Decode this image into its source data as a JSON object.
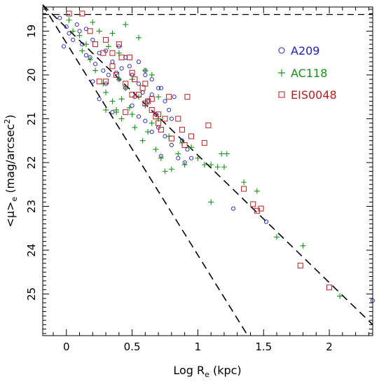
{
  "chart_data": {
    "type": "scatter",
    "xlabel": "Log R",
    "xlabel_sub": "e",
    "xlabel_unit": " (kpc)",
    "ylabel": "<μ>",
    "ylabel_sub": "e",
    "ylabel_unit": " (mag/arcsec",
    "ylabel_sup": "2",
    "ylabel_close": ")",
    "xlim": [
      -0.18,
      2.33
    ],
    "ylim": [
      25.95,
      18.45
    ],
    "y_inverted": true,
    "x_ticks": [
      "0",
      "0.5",
      "1",
      "1.5",
      "2"
    ],
    "x_tick_values": [
      0,
      0.5,
      1,
      1.5,
      2
    ],
    "y_ticks": [
      "19",
      "20",
      "21",
      "22",
      "23",
      "24",
      "25"
    ],
    "y_tick_values": [
      19,
      20,
      21,
      22,
      23,
      24,
      25
    ],
    "legend_placement": "top-right",
    "lines": [
      {
        "style": "dashed",
        "kind": "horizontal",
        "y": 18.62
      },
      {
        "style": "dashed",
        "points": [
          [
            -0.18,
            18.4
          ],
          [
            2.33,
            25.7
          ]
        ]
      },
      {
        "style": "dashed",
        "points": [
          [
            -0.18,
            18.4
          ],
          [
            1.38,
            25.95
          ]
        ]
      }
    ],
    "series": [
      {
        "name": "A209",
        "marker": "circle",
        "color": "#1f1fb4",
        "points": [
          [
            -0.05,
            18.7
          ],
          [
            0.0,
            18.9
          ],
          [
            0.02,
            19.05
          ],
          [
            0.05,
            19.2
          ],
          [
            -0.02,
            19.35
          ],
          [
            0.1,
            19.0
          ],
          [
            0.12,
            19.3
          ],
          [
            0.15,
            19.55
          ],
          [
            0.18,
            19.6
          ],
          [
            0.2,
            19.2
          ],
          [
            0.22,
            19.75
          ],
          [
            0.25,
            19.5
          ],
          [
            0.28,
            19.9
          ],
          [
            0.3,
            19.45
          ],
          [
            0.32,
            20.0
          ],
          [
            0.3,
            20.2
          ],
          [
            0.35,
            19.7
          ],
          [
            0.38,
            19.95
          ],
          [
            0.4,
            20.1
          ],
          [
            0.42,
            19.85
          ],
          [
            0.45,
            20.3
          ],
          [
            0.48,
            19.8
          ],
          [
            0.5,
            20.0
          ],
          [
            0.52,
            20.5
          ],
          [
            0.55,
            20.2
          ],
          [
            0.58,
            20.4
          ],
          [
            0.6,
            20.0
          ],
          [
            0.62,
            20.6
          ],
          [
            0.65,
            20.45
          ],
          [
            0.68,
            20.9
          ],
          [
            0.7,
            21.2
          ],
          [
            0.72,
            20.3
          ],
          [
            0.75,
            21.4
          ],
          [
            0.78,
            20.8
          ],
          [
            0.8,
            21.6
          ],
          [
            0.82,
            20.5
          ],
          [
            0.85,
            21.9
          ],
          [
            0.88,
            21.5
          ],
          [
            0.9,
            22.0
          ],
          [
            0.92,
            21.7
          ],
          [
            0.95,
            21.9
          ],
          [
            0.2,
            20.15
          ],
          [
            0.25,
            20.55
          ],
          [
            0.35,
            20.85
          ],
          [
            0.15,
            18.95
          ],
          [
            0.08,
            18.85
          ],
          [
            0.4,
            19.35
          ],
          [
            0.45,
            19.6
          ],
          [
            0.55,
            19.7
          ],
          [
            0.6,
            19.9
          ],
          [
            0.65,
            20.1
          ],
          [
            0.7,
            20.3
          ],
          [
            0.75,
            20.6
          ],
          [
            0.8,
            21.0
          ],
          [
            0.6,
            21.05
          ],
          [
            0.55,
            20.95
          ],
          [
            0.65,
            21.3
          ],
          [
            0.72,
            21.85
          ],
          [
            0.5,
            20.7
          ],
          [
            1.27,
            23.05
          ],
          [
            1.52,
            23.35
          ],
          [
            2.33,
            25.15
          ]
        ]
      },
      {
        "name": "AC118",
        "marker": "plus",
        "color": "#1a8f1a",
        "points": [
          [
            0.02,
            18.75
          ],
          [
            0.05,
            19.0
          ],
          [
            0.1,
            19.1
          ],
          [
            0.15,
            19.3
          ],
          [
            0.18,
            19.65
          ],
          [
            0.22,
            19.9
          ],
          [
            0.25,
            19.0
          ],
          [
            0.28,
            20.2
          ],
          [
            0.3,
            20.4
          ],
          [
            0.32,
            19.35
          ],
          [
            0.35,
            20.6
          ],
          [
            0.38,
            20.8
          ],
          [
            0.4,
            19.5
          ],
          [
            0.42,
            21.0
          ],
          [
            0.45,
            20.3
          ],
          [
            0.48,
            20.75
          ],
          [
            0.5,
            20.9
          ],
          [
            0.52,
            21.2
          ],
          [
            0.55,
            20.5
          ],
          [
            0.58,
            21.5
          ],
          [
            0.6,
            20.7
          ],
          [
            0.62,
            21.3
          ],
          [
            0.65,
            21.1
          ],
          [
            0.68,
            21.7
          ],
          [
            0.7,
            21.0
          ],
          [
            0.72,
            21.9
          ],
          [
            0.75,
            22.2
          ],
          [
            0.78,
            21.4
          ],
          [
            0.8,
            22.15
          ],
          [
            0.85,
            21.8
          ],
          [
            0.88,
            21.55
          ],
          [
            0.9,
            22.05
          ],
          [
            0.95,
            21.65
          ],
          [
            1.0,
            21.9
          ],
          [
            1.05,
            22.05
          ],
          [
            1.1,
            22.05
          ],
          [
            1.15,
            22.1
          ],
          [
            1.18,
            21.8
          ],
          [
            1.2,
            22.1
          ],
          [
            1.22,
            21.8
          ],
          [
            1.1,
            22.9
          ],
          [
            1.35,
            22.45
          ],
          [
            1.45,
            22.65
          ],
          [
            1.6,
            23.7
          ],
          [
            1.8,
            23.9
          ],
          [
            2.08,
            25.05
          ],
          [
            0.45,
            18.85
          ],
          [
            0.55,
            19.15
          ],
          [
            0.35,
            19.05
          ],
          [
            0.2,
            18.8
          ],
          [
            0.12,
            19.45
          ],
          [
            0.3,
            20.8
          ],
          [
            0.4,
            20.1
          ],
          [
            0.5,
            20.1
          ],
          [
            0.6,
            19.9
          ],
          [
            0.7,
            20.5
          ],
          [
            0.38,
            20.85
          ],
          [
            0.42,
            20.55
          ],
          [
            0.65,
            20.0
          ]
        ]
      },
      {
        "name": "EIS0048",
        "marker": "square",
        "color": "#b51f1f",
        "points": [
          [
            0.02,
            18.6
          ],
          [
            0.12,
            18.6
          ],
          [
            0.18,
            19.0
          ],
          [
            0.22,
            19.3
          ],
          [
            0.28,
            19.5
          ],
          [
            0.3,
            19.2
          ],
          [
            0.35,
            19.8
          ],
          [
            0.38,
            20.0
          ],
          [
            0.42,
            19.6
          ],
          [
            0.45,
            20.2
          ],
          [
            0.48,
            19.6
          ],
          [
            0.5,
            19.95
          ],
          [
            0.52,
            20.1
          ],
          [
            0.55,
            20.45
          ],
          [
            0.58,
            20.3
          ],
          [
            0.6,
            20.2
          ],
          [
            0.62,
            20.6
          ],
          [
            0.65,
            20.8
          ],
          [
            0.68,
            20.95
          ],
          [
            0.7,
            20.9
          ],
          [
            0.72,
            21.25
          ],
          [
            0.75,
            21.0
          ],
          [
            0.78,
            20.5
          ],
          [
            0.8,
            21.45
          ],
          [
            0.85,
            21.0
          ],
          [
            0.88,
            21.25
          ],
          [
            0.9,
            21.6
          ],
          [
            0.92,
            20.5
          ],
          [
            0.95,
            21.4
          ],
          [
            1.05,
            21.55
          ],
          [
            1.08,
            21.15
          ],
          [
            1.35,
            22.6
          ],
          [
            1.42,
            22.95
          ],
          [
            1.45,
            23.1
          ],
          [
            1.48,
            23.05
          ],
          [
            1.78,
            24.35
          ],
          [
            2.0,
            24.85
          ],
          [
            0.25,
            20.15
          ],
          [
            0.3,
            20.15
          ],
          [
            0.4,
            19.3
          ],
          [
            0.35,
            19.5
          ],
          [
            0.6,
            20.65
          ],
          [
            0.7,
            21.1
          ],
          [
            0.5,
            20.45
          ],
          [
            0.45,
            20.85
          ],
          [
            0.65,
            20.55
          ]
        ]
      }
    ]
  }
}
